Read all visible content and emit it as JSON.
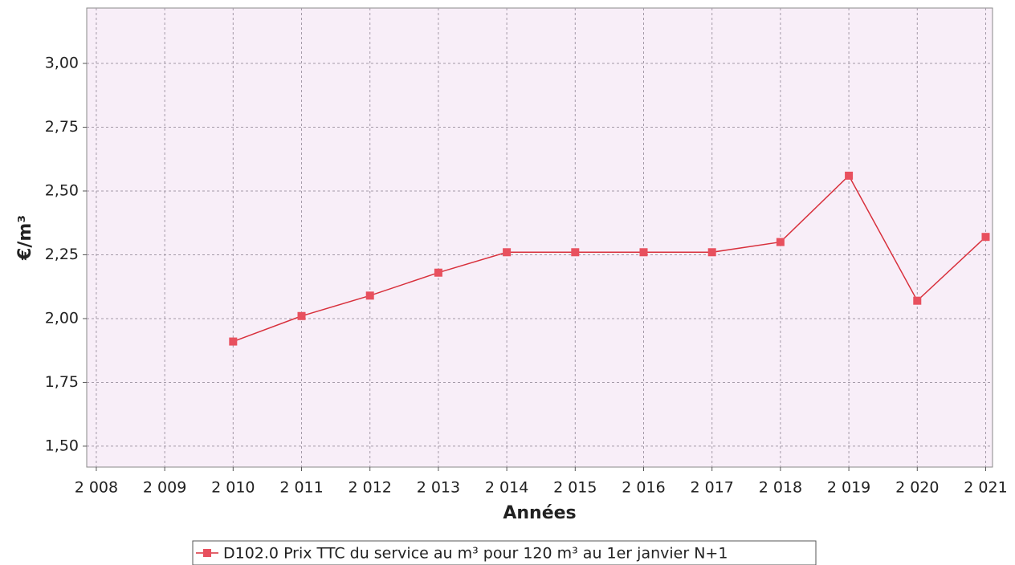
{
  "chart_data": {
    "type": "line",
    "x_label": "Années",
    "y_label": "€/m³",
    "x": [
      2010,
      2011,
      2012,
      2013,
      2014,
      2015,
      2016,
      2017,
      2018,
      2019,
      2020,
      2021
    ],
    "series": [
      {
        "name": "D102.0 Prix TTC du service au m³ pour 120 m³ au 1er janvier N+1",
        "color": "#e8505e",
        "values": [
          1.91,
          2.01,
          2.09,
          2.18,
          2.26,
          2.26,
          2.26,
          2.26,
          2.3,
          2.56,
          2.07,
          2.32
        ]
      }
    ],
    "xlim": [
      2007.86,
      2021.1
    ],
    "xticks": [
      {
        "value": 2008,
        "label": "2 008"
      },
      {
        "value": 2009,
        "label": "2 009"
      },
      {
        "value": 2010,
        "label": "2 010"
      },
      {
        "value": 2011,
        "label": "2 011"
      },
      {
        "value": 2012,
        "label": "2 012"
      },
      {
        "value": 2013,
        "label": "2 013"
      },
      {
        "value": 2014,
        "label": "2 014"
      },
      {
        "value": 2015,
        "label": "2 015"
      },
      {
        "value": 2016,
        "label": "2 016"
      },
      {
        "value": 2017,
        "label": "2 017"
      },
      {
        "value": 2018,
        "label": "2 018"
      },
      {
        "value": 2019,
        "label": "2 019"
      },
      {
        "value": 2020,
        "label": "2 020"
      },
      {
        "value": 2021,
        "label": "2 021"
      }
    ],
    "ylim": [
      1.418,
      3.217
    ],
    "yticks": [
      {
        "value": 1.5,
        "label": "1,50"
      },
      {
        "value": 1.75,
        "label": "1,75"
      },
      {
        "value": 2,
        "label": "2,00"
      },
      {
        "value": 2.25,
        "label": "2,25"
      },
      {
        "value": 2.5,
        "label": "2,50"
      },
      {
        "value": 2.75,
        "label": "2,75"
      },
      {
        "value": 3,
        "label": "3,00"
      }
    ],
    "grid": true
  }
}
